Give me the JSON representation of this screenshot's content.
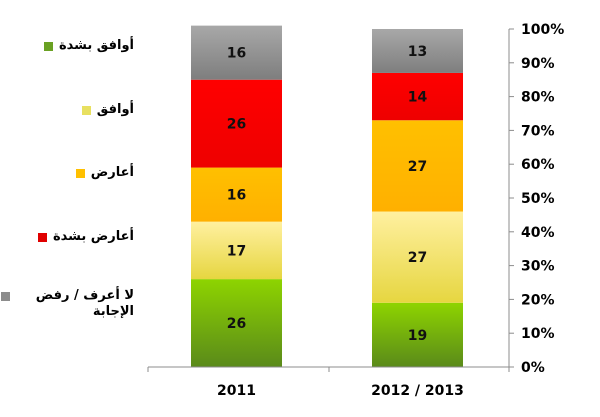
{
  "chart_data": {
    "type": "bar",
    "stacked": true,
    "categories": [
      "2011",
      "2012 / 2013"
    ],
    "series": [
      {
        "name": "أوافق بشدة",
        "values": [
          26,
          19
        ],
        "color": "#6aa123"
      },
      {
        "name": "أوافق",
        "values": [
          17,
          27
        ],
        "color": "#f0e060"
      },
      {
        "name": "أعارض",
        "values": [
          16,
          27
        ],
        "color": "#ffc000"
      },
      {
        "name": "أعارض بشدة",
        "values": [
          26,
          14
        ],
        "color": "#ff0000"
      },
      {
        "name": "لا أعرف / رفض الإجابة",
        "values": [
          16,
          13
        ],
        "color": "#9a9a9a"
      }
    ],
    "ylim": [
      0,
      100
    ],
    "yticks": [
      "0%",
      "10%",
      "20%",
      "30%",
      "40%",
      "50%",
      "60%",
      "70%",
      "80%",
      "90%",
      "100%"
    ],
    "grid": false,
    "legend_position": "left"
  },
  "legend": [
    {
      "label": "أوافق بشدة",
      "color": "#6aa123"
    },
    {
      "label": "أوافق",
      "color": "#e8e060"
    },
    {
      "label": "أعارض",
      "color": "#ffc000"
    },
    {
      "label": "أعارض بشدة",
      "color": "#e00000"
    },
    {
      "label": "لا أعرف / رفض الإجابة",
      "color": "#8c8c8c"
    }
  ]
}
